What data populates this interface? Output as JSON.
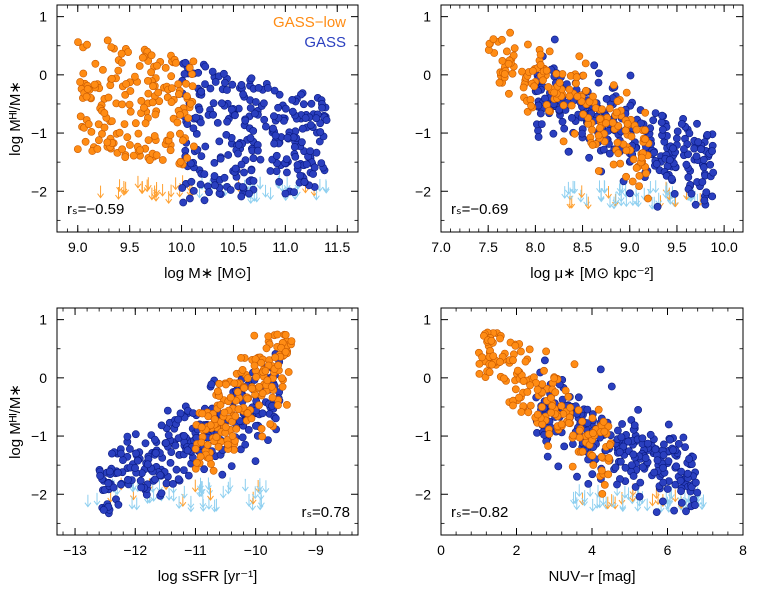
{
  "colors": {
    "gass": "#2a3fbf",
    "gass_edge": "#0a1a80",
    "gass_low": "#ff8c14",
    "gass_low_edge": "#c85a00",
    "upper_limit": "#8fd0f0",
    "upper_limit_orange": "#ffa030"
  },
  "chart_data": [
    {
      "type": "scatter",
      "panel": "top-left",
      "xlabel": "log M∗ [M⊙]",
      "ylabel": "log Mᴴᴵ/M∗",
      "xlim": [
        8.8,
        11.7
      ],
      "ylim": [
        -2.7,
        1.2
      ],
      "xticks": [
        "9.0",
        "9.5",
        "10.0",
        "10.5",
        "11.0",
        "11.5"
      ],
      "yticks": [
        "-2",
        "-1",
        "0",
        "1"
      ],
      "corr_label": "rₛ=−0.59",
      "legend": [
        "GASS−low",
        "GASS"
      ],
      "series": [
        {
          "name": "GASS−low",
          "x_range": [
            9.0,
            10.15
          ],
          "y_top": [
            0.7,
            0.3
          ],
          "y_bottom": [
            -1.3,
            -1.6
          ]
        },
        {
          "name": "GASS",
          "x_range": [
            10.0,
            11.4
          ],
          "y_top": [
            0.3,
            -0.4
          ],
          "y_bottom": [
            -2.2,
            -2.0
          ]
        }
      ],
      "upper_limits": {
        "x_range": [
          9.2,
          11.4
        ],
        "y": [
          -2.0,
          -1.7
        ]
      }
    },
    {
      "type": "scatter",
      "panel": "top-right",
      "xlabel": "log μ∗ [M⊙ kpc⁻²]",
      "ylabel": "",
      "xlim": [
        7.0,
        10.2
      ],
      "ylim": [
        -2.7,
        1.2
      ],
      "xticks": [
        "7.0",
        "7.5",
        "8.0",
        "8.5",
        "9.0",
        "9.5",
        "10.0"
      ],
      "yticks": [
        "-2",
        "-1",
        "0",
        "1"
      ],
      "corr_label": "rₛ=−0.69",
      "series": [
        {
          "name": "GASS−low",
          "x_range": [
            7.5,
            9.2
          ],
          "y_trend": [
            0.4,
            -1.4
          ]
        },
        {
          "name": "GASS",
          "x_range": [
            8.0,
            9.9
          ],
          "y_trend": [
            -0.3,
            -1.6
          ]
        }
      ],
      "upper_limits": {
        "x_range": [
          8.3,
          9.8
        ],
        "y": [
          -2.1,
          -1.8
        ]
      }
    },
    {
      "type": "scatter",
      "panel": "bottom-left",
      "xlabel": "log sSFR [yr⁻¹]",
      "ylabel": "log Mᴴᴵ/M∗",
      "xlim": [
        -13.3,
        -8.3
      ],
      "ylim": [
        -2.7,
        1.2
      ],
      "xticks": [
        "-13",
        "-12",
        "-11",
        "-10",
        "-9"
      ],
      "yticks": [
        "-2",
        "-1",
        "0",
        "1"
      ],
      "corr_label": "rₛ=0.78",
      "series": [
        {
          "name": "GASS−low",
          "x_range": [
            -11.0,
            -9.4
          ],
          "y_trend": [
            -1.2,
            0.4
          ]
        },
        {
          "name": "GASS",
          "x_range": [
            -12.6,
            -9.6
          ],
          "y_trend": [
            -1.9,
            -0.3
          ]
        }
      ],
      "upper_limits": {
        "x_range": [
          -12.8,
          -9.8
        ],
        "y": [
          -2.1,
          -1.7
        ]
      }
    },
    {
      "type": "scatter",
      "panel": "bottom-right",
      "xlabel": "NUV−r [mag]",
      "ylabel": "",
      "xlim": [
        0,
        8
      ],
      "ylim": [
        -2.7,
        1.2
      ],
      "xticks": [
        "0",
        "2",
        "4",
        "6",
        "8"
      ],
      "yticks": [
        "-2",
        "-1",
        "0",
        "1"
      ],
      "corr_label": "rₛ=−0.82",
      "series": [
        {
          "name": "GASS−low",
          "x_range": [
            1.0,
            4.5
          ],
          "y_trend": [
            0.5,
            -1.3
          ]
        },
        {
          "name": "GASS",
          "x_range": [
            2.5,
            6.8
          ],
          "y_trend": [
            -0.5,
            -1.8
          ]
        }
      ],
      "upper_limits": {
        "x_range": [
          3.5,
          7.0
        ],
        "y": [
          -2.1,
          -1.8
        ]
      }
    }
  ]
}
